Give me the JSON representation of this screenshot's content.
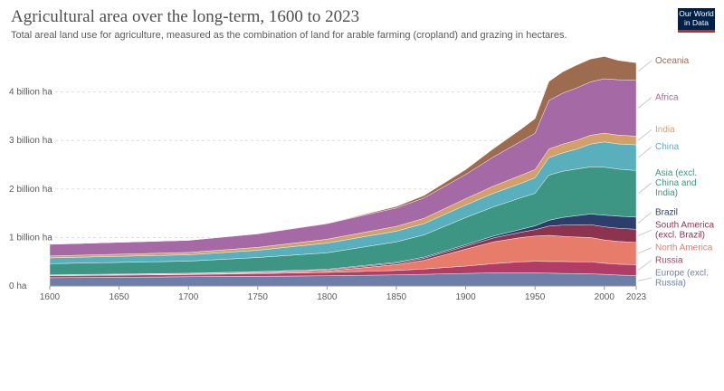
{
  "header": {
    "title": "Agricultural area over the long-term, 1600 to 2023",
    "subtitle": "Total areal land use for agriculture, measured as the combination of land for arable farming (cropland) and grazing in hectares.",
    "logo_line1": "Our World",
    "logo_line2": "in Data"
  },
  "chart_data": {
    "type": "area",
    "stacked": true,
    "title": "Agricultural area over the long-term, 1600 to 2023",
    "subtitle": "Total areal land use for agriculture, measured as the combination of land for arable farming (cropland) and grazing in hectares.",
    "xlabel": "",
    "ylabel": "",
    "unit": "hectares",
    "xlim": [
      1600,
      2023
    ],
    "ylim": [
      0,
      5000000000
    ],
    "grid": true,
    "legend": "right (labels at line ends)",
    "x_ticks": [
      1600,
      1650,
      1700,
      1750,
      1800,
      1850,
      1900,
      1950,
      2000,
      2023
    ],
    "x_tick_labels": [
      "1600",
      "1650",
      "1700",
      "1750",
      "1800",
      "1850",
      "1900",
      "1950",
      "2000",
      "2023"
    ],
    "y_ticks": [
      0,
      1000000000,
      2000000000,
      3000000000,
      4000000000
    ],
    "y_tick_labels": [
      "0 ha",
      "1 billion ha",
      "2 billion ha",
      "3 billion ha",
      "4 billion ha"
    ],
    "x": [
      1600,
      1700,
      1750,
      1800,
      1850,
      1870,
      1900,
      1920,
      1940,
      1950,
      1960,
      1970,
      1980,
      1990,
      2000,
      2010,
      2023
    ],
    "series": [
      {
        "name": "Europe (excl. Russia)",
        "color": "#6d7fa8",
        "values": [
          170000000,
          190000000,
          200000000,
          210000000,
          230000000,
          240000000,
          260000000,
          270000000,
          270000000,
          270000000,
          265000000,
          260000000,
          255000000,
          250000000,
          240000000,
          225000000,
          215000000
        ]
      },
      {
        "name": "Russia",
        "color": "#b13c65",
        "values": [
          40000000,
          45000000,
          55000000,
          70000000,
          90000000,
          110000000,
          150000000,
          190000000,
          230000000,
          240000000,
          240000000,
          245000000,
          245000000,
          250000000,
          230000000,
          225000000,
          225000000
        ]
      },
      {
        "name": "North America",
        "color": "#e87c6b",
        "values": [
          5000000,
          8000000,
          15000000,
          30000000,
          120000000,
          180000000,
          350000000,
          450000000,
          500000000,
          520000000,
          540000000,
          520000000,
          510000000,
          500000000,
          480000000,
          470000000,
          460000000
        ]
      },
      {
        "name": "South America (excl. Brazil)",
        "color": "#8c3350",
        "values": [
          10000000,
          12000000,
          15000000,
          20000000,
          30000000,
          40000000,
          60000000,
          80000000,
          110000000,
          130000000,
          190000000,
          230000000,
          250000000,
          265000000,
          270000000,
          270000000,
          270000000
        ]
      },
      {
        "name": "Brazil",
        "color": "#2c3e6b",
        "values": [
          5000000,
          8000000,
          12000000,
          15000000,
          20000000,
          25000000,
          30000000,
          40000000,
          60000000,
          80000000,
          120000000,
          160000000,
          190000000,
          220000000,
          240000000,
          250000000,
          250000000
        ]
      },
      {
        "name": "Asia (excl. China and India)",
        "color": "#3d9683",
        "values": [
          230000000,
          250000000,
          290000000,
          340000000,
          420000000,
          460000000,
          560000000,
          600000000,
          650000000,
          670000000,
          930000000,
          950000000,
          960000000,
          970000000,
          990000000,
          970000000,
          960000000
        ]
      },
      {
        "name": "China",
        "color": "#5aafbd",
        "values": [
          120000000,
          130000000,
          150000000,
          200000000,
          220000000,
          230000000,
          260000000,
          280000000,
          300000000,
          320000000,
          360000000,
          380000000,
          410000000,
          470000000,
          520000000,
          520000000,
          530000000
        ]
      },
      {
        "name": "India",
        "color": "#d4a06a",
        "values": [
          40000000,
          50000000,
          60000000,
          80000000,
          100000000,
          110000000,
          130000000,
          150000000,
          165000000,
          170000000,
          180000000,
          180000000,
          182000000,
          183000000,
          182000000,
          181000000,
          180000000
        ]
      },
      {
        "name": "Africa",
        "color": "#a56aa6",
        "values": [
          240000000,
          250000000,
          280000000,
          320000000,
          380000000,
          420000000,
          500000000,
          600000000,
          700000000,
          750000000,
          1000000000,
          1050000000,
          1080000000,
          1100000000,
          1120000000,
          1140000000,
          1150000000
        ]
      },
      {
        "name": "Oceania",
        "color": "#9d6c4f",
        "values": [
          0,
          0,
          0,
          5000000,
          30000000,
          50000000,
          100000000,
          170000000,
          250000000,
          300000000,
          390000000,
          440000000,
          470000000,
          470000000,
          460000000,
          400000000,
          360000000
        ]
      }
    ]
  }
}
